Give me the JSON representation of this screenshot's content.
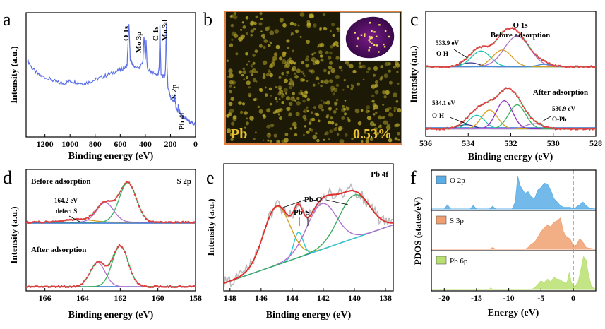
{
  "figure": {
    "panels": [
      {
        "letter": "a"
      },
      {
        "letter": "b"
      },
      {
        "letter": "c"
      },
      {
        "letter": "d"
      },
      {
        "letter": "e"
      },
      {
        "letter": "f"
      }
    ]
  },
  "chart_data": [
    {
      "id": "a",
      "type": "line",
      "xlabel": "Binding energy (eV)",
      "ylabel": "Intensity (a.u.)",
      "xlim": [
        1350,
        0
      ],
      "xticks": [
        "1200",
        "1000",
        "800",
        "600",
        "400",
        "200",
        "0"
      ],
      "xtick_values": [
        1200,
        1000,
        800,
        600,
        400,
        200,
        0
      ],
      "color": "#5b6fe8",
      "series": [
        {
          "x": [
            1340,
            1300,
            1250,
            1200,
            1150,
            1100,
            1050,
            1000,
            950,
            900,
            850,
            800,
            750,
            700,
            650,
            600,
            560,
            545,
            531,
            520,
            500,
            450,
            420,
            410,
            400,
            394,
            385,
            350,
            300,
            290,
            284,
            275,
            250,
            240,
            232,
            228,
            220,
            200,
            170,
            165,
            160,
            150,
            140,
            138,
            120,
            100,
            80,
            60,
            40,
            20,
            0
          ],
          "y": [
            0.62,
            0.55,
            0.5,
            0.48,
            0.46,
            0.44,
            0.43,
            0.45,
            0.44,
            0.43,
            0.44,
            0.46,
            0.48,
            0.5,
            0.52,
            0.54,
            0.56,
            0.58,
            0.92,
            0.62,
            0.58,
            0.55,
            0.6,
            0.82,
            0.62,
            0.78,
            0.55,
            0.52,
            0.5,
            0.55,
            0.9,
            0.5,
            0.48,
            0.52,
            0.92,
            0.6,
            0.4,
            0.32,
            0.28,
            0.34,
            0.26,
            0.22,
            0.2,
            0.26,
            0.18,
            0.16,
            0.15,
            0.13,
            0.12,
            0.11,
            0.1
          ]
        }
      ],
      "annotations": [
        "O 1s",
        "Mo 3p",
        "C 1s",
        "Mo 3d",
        "S 2p",
        "Pb 4f"
      ]
    },
    {
      "id": "b",
      "type": "heatmap",
      "element": "Pb",
      "value_label": "0.53%",
      "dot_color": "#b8a82a",
      "background": "#1c1a06"
    },
    {
      "id": "c",
      "type": "line",
      "xlabel": "Binding energy (eV)",
      "ylabel": "Intensity (a.u.)",
      "xlim": [
        536,
        528
      ],
      "xticks": [
        "536",
        "534",
        "532",
        "530",
        "528"
      ],
      "xtick_values": [
        536,
        534,
        532,
        530,
        528
      ],
      "title": "O 1s",
      "subplots": [
        {
          "label": "Before adsorption",
          "baseline": 0.02,
          "components": [
            {
              "center": 533.9,
              "amp": 0.08,
              "width": 0.4,
              "color": "#3a3a8a"
            },
            {
              "center": 533.4,
              "amp": 0.32,
              "width": 0.45,
              "color": "#1fc4b0"
            },
            {
              "center": 532.4,
              "amp": 0.34,
              "width": 0.45,
              "color": "#d4a020"
            },
            {
              "center": 531.7,
              "amp": 0.62,
              "width": 0.6,
              "color": "#b070d0"
            },
            {
              "center": 530.4,
              "amp": 0.05,
              "width": 0.35,
              "color": "#4a8ad0"
            }
          ],
          "annotations": [
            "533.9 eV",
            "O-H"
          ]
        },
        {
          "label": "After adsorption",
          "baseline": 0.02,
          "components": [
            {
              "center": 534.1,
              "amp": 0.08,
              "width": 0.38,
              "color": "#3a3a8a"
            },
            {
              "center": 533.6,
              "amp": 0.26,
              "width": 0.38,
              "color": "#1fc4b0"
            },
            {
              "center": 533.0,
              "amp": 0.36,
              "width": 0.38,
              "color": "#d4a020"
            },
            {
              "center": 532.3,
              "amp": 0.54,
              "width": 0.38,
              "color": "#8a30c0"
            },
            {
              "center": 531.7,
              "amp": 0.46,
              "width": 0.4,
              "color": "#3ab060"
            },
            {
              "center": 530.9,
              "amp": 0.1,
              "width": 0.4,
              "color": "#b070d0"
            }
          ],
          "annotations": [
            "534.1 eV",
            "O-H",
            "530.9 eV",
            "O-Pb"
          ]
        }
      ]
    },
    {
      "id": "d",
      "type": "line",
      "xlabel": "Binding energy (eV)",
      "ylabel": "Intensity (a.u.)",
      "xlim": [
        167,
        158
      ],
      "xticks": [
        "166",
        "164",
        "162",
        "160",
        "158"
      ],
      "xtick_values": [
        166,
        164,
        162,
        160,
        158
      ],
      "title": "S 2p",
      "subplots": [
        {
          "label": "Before adsorption",
          "baseline": 0.05,
          "components": [
            {
              "center": 164.2,
              "amp": 0.06,
              "width": 0.7,
              "color": "#d4a020"
            },
            {
              "center": 162.8,
              "amp": 0.42,
              "width": 0.45,
              "color": "#b070d0"
            },
            {
              "center": 161.6,
              "amp": 0.85,
              "width": 0.45,
              "color": "#3ab060"
            }
          ],
          "annotations": [
            "164.2 eV",
            "defect S"
          ]
        },
        {
          "label": "After adsorption",
          "baseline": 0.03,
          "components": [
            {
              "center": 163.2,
              "amp": 0.5,
              "width": 0.4,
              "color": "#b070d0"
            },
            {
              "center": 162.0,
              "amp": 0.85,
              "width": 0.42,
              "color": "#3ab060"
            }
          ],
          "annotations": []
        }
      ]
    },
    {
      "id": "e",
      "type": "line",
      "xlabel": "Binding energy (eV)",
      "ylabel": "Intensity (a.u.)",
      "xlim": [
        148.4,
        137.5
      ],
      "xticks": [
        "148",
        "146",
        "144",
        "142",
        "140",
        "138"
      ],
      "xtick_values": [
        148,
        146,
        144,
        142,
        140,
        138
      ],
      "title": "Pb 4f",
      "baseline_from": [
        148.4,
        0.06
      ],
      "baseline_to": [
        137.5,
        0.52
      ],
      "components": [
        {
          "center": 145.0,
          "amp": 0.46,
          "width": 0.85,
          "color": "#d4a020"
        },
        {
          "center": 143.6,
          "amp": 0.2,
          "width": 0.3,
          "color": "#2ac8d8"
        },
        {
          "center": 142.1,
          "amp": 0.36,
          "width": 0.95,
          "color": "#b070d0"
        },
        {
          "center": 140.0,
          "amp": 0.34,
          "width": 1.0,
          "color": "#3ab060"
        }
      ],
      "annotations": [
        "Pb-O",
        "Pb-S"
      ]
    },
    {
      "id": "f",
      "type": "area",
      "xlabel": "Energy (eV)",
      "ylabel": "PDOS (states/eV)",
      "xlim": [
        -22,
        3.5
      ],
      "xticks": [
        "-20",
        "-15",
        "-10",
        "-5",
        "0"
      ],
      "xtick_values": [
        -20,
        -15,
        -10,
        -5,
        0
      ],
      "fermi_level": 0,
      "series": [
        {
          "name": "O 2p",
          "color": "#5aaee8",
          "x": [
            -22,
            -20,
            -19.5,
            -19,
            -16,
            -15.5,
            -15,
            -13,
            -12.5,
            -12,
            -9.5,
            -9,
            -8.6,
            -8.3,
            -8,
            -7.5,
            -7,
            -6.5,
            -6,
            -5.5,
            -5,
            -4.5,
            -4,
            -3.5,
            -3,
            -2.5,
            -2,
            -1.5,
            -1,
            -0.5,
            0,
            0.3,
            0.6,
            1,
            1.5,
            2,
            2.5,
            3.5
          ],
          "y": [
            0,
            0,
            0.12,
            0,
            0,
            0.1,
            0,
            0,
            0.08,
            0,
            0,
            0.2,
            0.95,
            0.7,
            0.6,
            0.45,
            0.5,
            0.35,
            0.3,
            0.55,
            0.62,
            0.75,
            0.72,
            0.55,
            0.3,
            0.2,
            0.1,
            0.05,
            0.05,
            0.05,
            0.02,
            0.02,
            0.08,
            0.12,
            0.2,
            0.1,
            0.02,
            0
          ]
        },
        {
          "name": "S 3p",
          "color": "#f0a070",
          "x": [
            -22,
            -13,
            -12.5,
            -12,
            -7.5,
            -7,
            -6.5,
            -6,
            -5.5,
            -5,
            -4.5,
            -4,
            -3.5,
            -3,
            -2.5,
            -2,
            -1.5,
            -1,
            -0.5,
            0,
            0.5,
            1,
            1.3,
            1.7,
            2,
            3.5
          ],
          "y": [
            0,
            0,
            0.05,
            0,
            0,
            0.05,
            0.15,
            0.2,
            0.35,
            0.5,
            0.62,
            0.7,
            0.65,
            0.78,
            0.82,
            0.9,
            0.5,
            0.35,
            0.3,
            0.1,
            0.12,
            0.3,
            0.25,
            0.15,
            0.05,
            0
          ]
        },
        {
          "name": "Pb 6p",
          "color": "#b8e070",
          "x": [
            -22,
            -13,
            -12.8,
            -12.5,
            -6.5,
            -6,
            -5.5,
            -5,
            -4.5,
            -4,
            -3.5,
            -3,
            -2.5,
            -2,
            -1.5,
            -1,
            -0.6,
            -0.3,
            0,
            0.3,
            0.8,
            1.2,
            1.6,
            2,
            2.3,
            2.8,
            3.5
          ],
          "y": [
            0,
            0,
            0.05,
            0,
            0,
            0.05,
            0.15,
            0.25,
            0.2,
            0.3,
            0.22,
            0.35,
            0.3,
            0.28,
            0.2,
            0.18,
            0.5,
            0.2,
            0.1,
            0.1,
            0.25,
            0.6,
            0.95,
            0.85,
            0.5,
            0.1,
            0
          ]
        }
      ]
    }
  ]
}
